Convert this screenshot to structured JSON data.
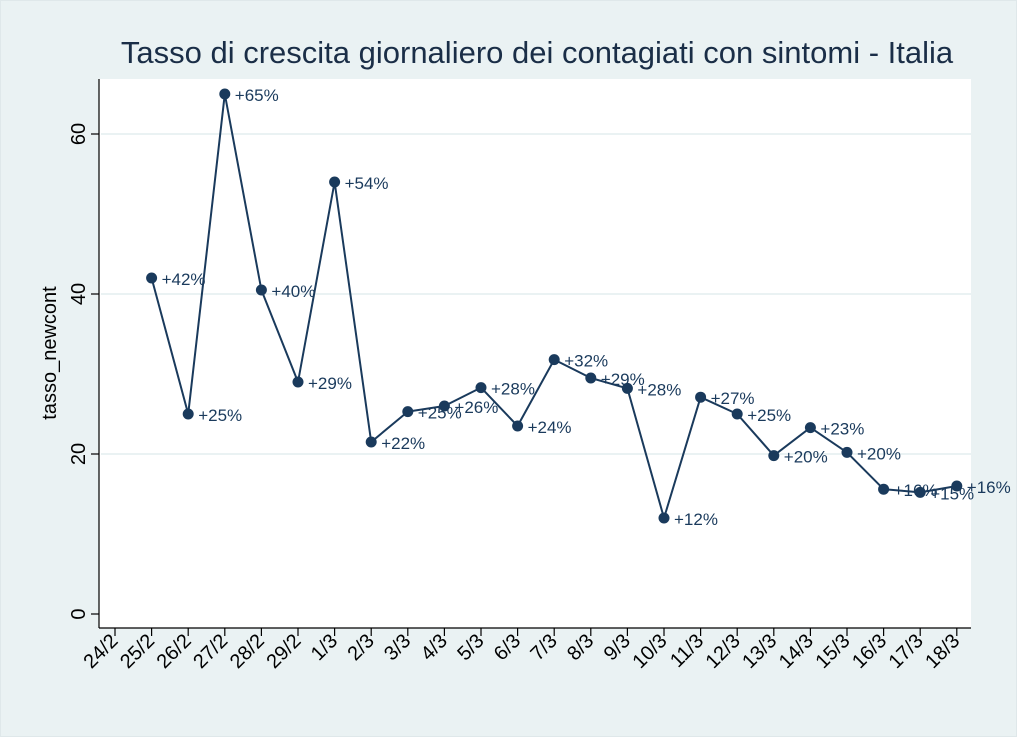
{
  "chart_data": {
    "type": "line",
    "title": "Tasso di crescita giornaliero dei contagiati con sintomi - Italia",
    "xlabel": "",
    "ylabel": "tasso_newcont",
    "categories": [
      "24/2",
      "25/2",
      "26/2",
      "27/2",
      "28/2",
      "29/2",
      "1/3",
      "2/3",
      "3/3",
      "4/3",
      "5/3",
      "6/3",
      "7/3",
      "8/3",
      "9/3",
      "10/3",
      "11/3",
      "12/3",
      "13/3",
      "14/3",
      "15/3",
      "16/3",
      "17/3",
      "18/3"
    ],
    "series": [
      {
        "values": [
          null,
          42,
          25,
          65,
          40.5,
          29,
          54,
          21.5,
          25.3,
          26,
          28.3,
          23.5,
          31.8,
          29.5,
          28.2,
          12,
          27.1,
          25,
          19.8,
          23.3,
          20.2,
          15.6,
          15.2,
          16
        ],
        "labels": [
          "",
          "+42%",
          "+25%",
          "+65%",
          "+40%",
          "+29%",
          "+54%",
          "+22%",
          "+25%",
          "+26%",
          "+28%",
          "+24%",
          "+32%",
          "+29%",
          "+28%",
          "+12%",
          "+27%",
          "+25%",
          "+20%",
          "+23%",
          "+20%",
          "+16%",
          "+15%",
          "+16%"
        ]
      }
    ],
    "yticks": [
      0,
      20,
      40,
      60
    ],
    "ylim": [
      -2,
      67
    ],
    "grid": true,
    "colors": {
      "line": "#1a3a5c",
      "grid": "#eaf2f3",
      "plot_bg": "#ffffff",
      "outer_bg": "#eaf2f3"
    }
  }
}
